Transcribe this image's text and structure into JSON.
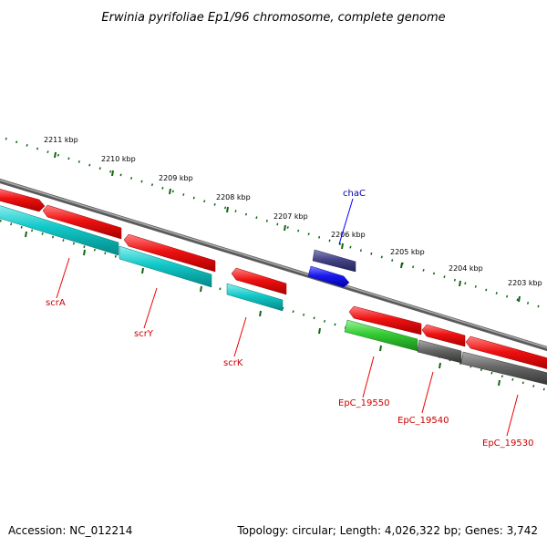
{
  "title": "Erwinia pyrifoliae Ep1/96 chromosome, complete genome",
  "kbp_labels": [
    "2211 kbp",
    "2210 kbp",
    "2209 kbp",
    "2208 kbp",
    "2207 kbp",
    "2206 kbp",
    "2205 kbp",
    "2204 kbp",
    "2203 kbp"
  ],
  "genes": {
    "chaC": "chaC",
    "scrA": "scrA",
    "scrY": "scrY",
    "scrK": "scrK",
    "EpC_19550": "EpC_19550",
    "EpC_19540": "EpC_19540",
    "EpC_19530": "EpC_19530"
  },
  "footer": {
    "accession": "Accession: NC_012214",
    "summary": "Topology: circular; Length: 4,026,322 bp; Genes: 3,742"
  },
  "colors": {
    "backbone": "#888888",
    "gene_red": "#ee1111",
    "cds_cyan": "#11c8c8",
    "cds_green": "#33cc33",
    "cds_grey": "#666666",
    "cds_blue": "#1a1aee",
    "gene_navy": "#444488",
    "ticks": "#116611"
  }
}
